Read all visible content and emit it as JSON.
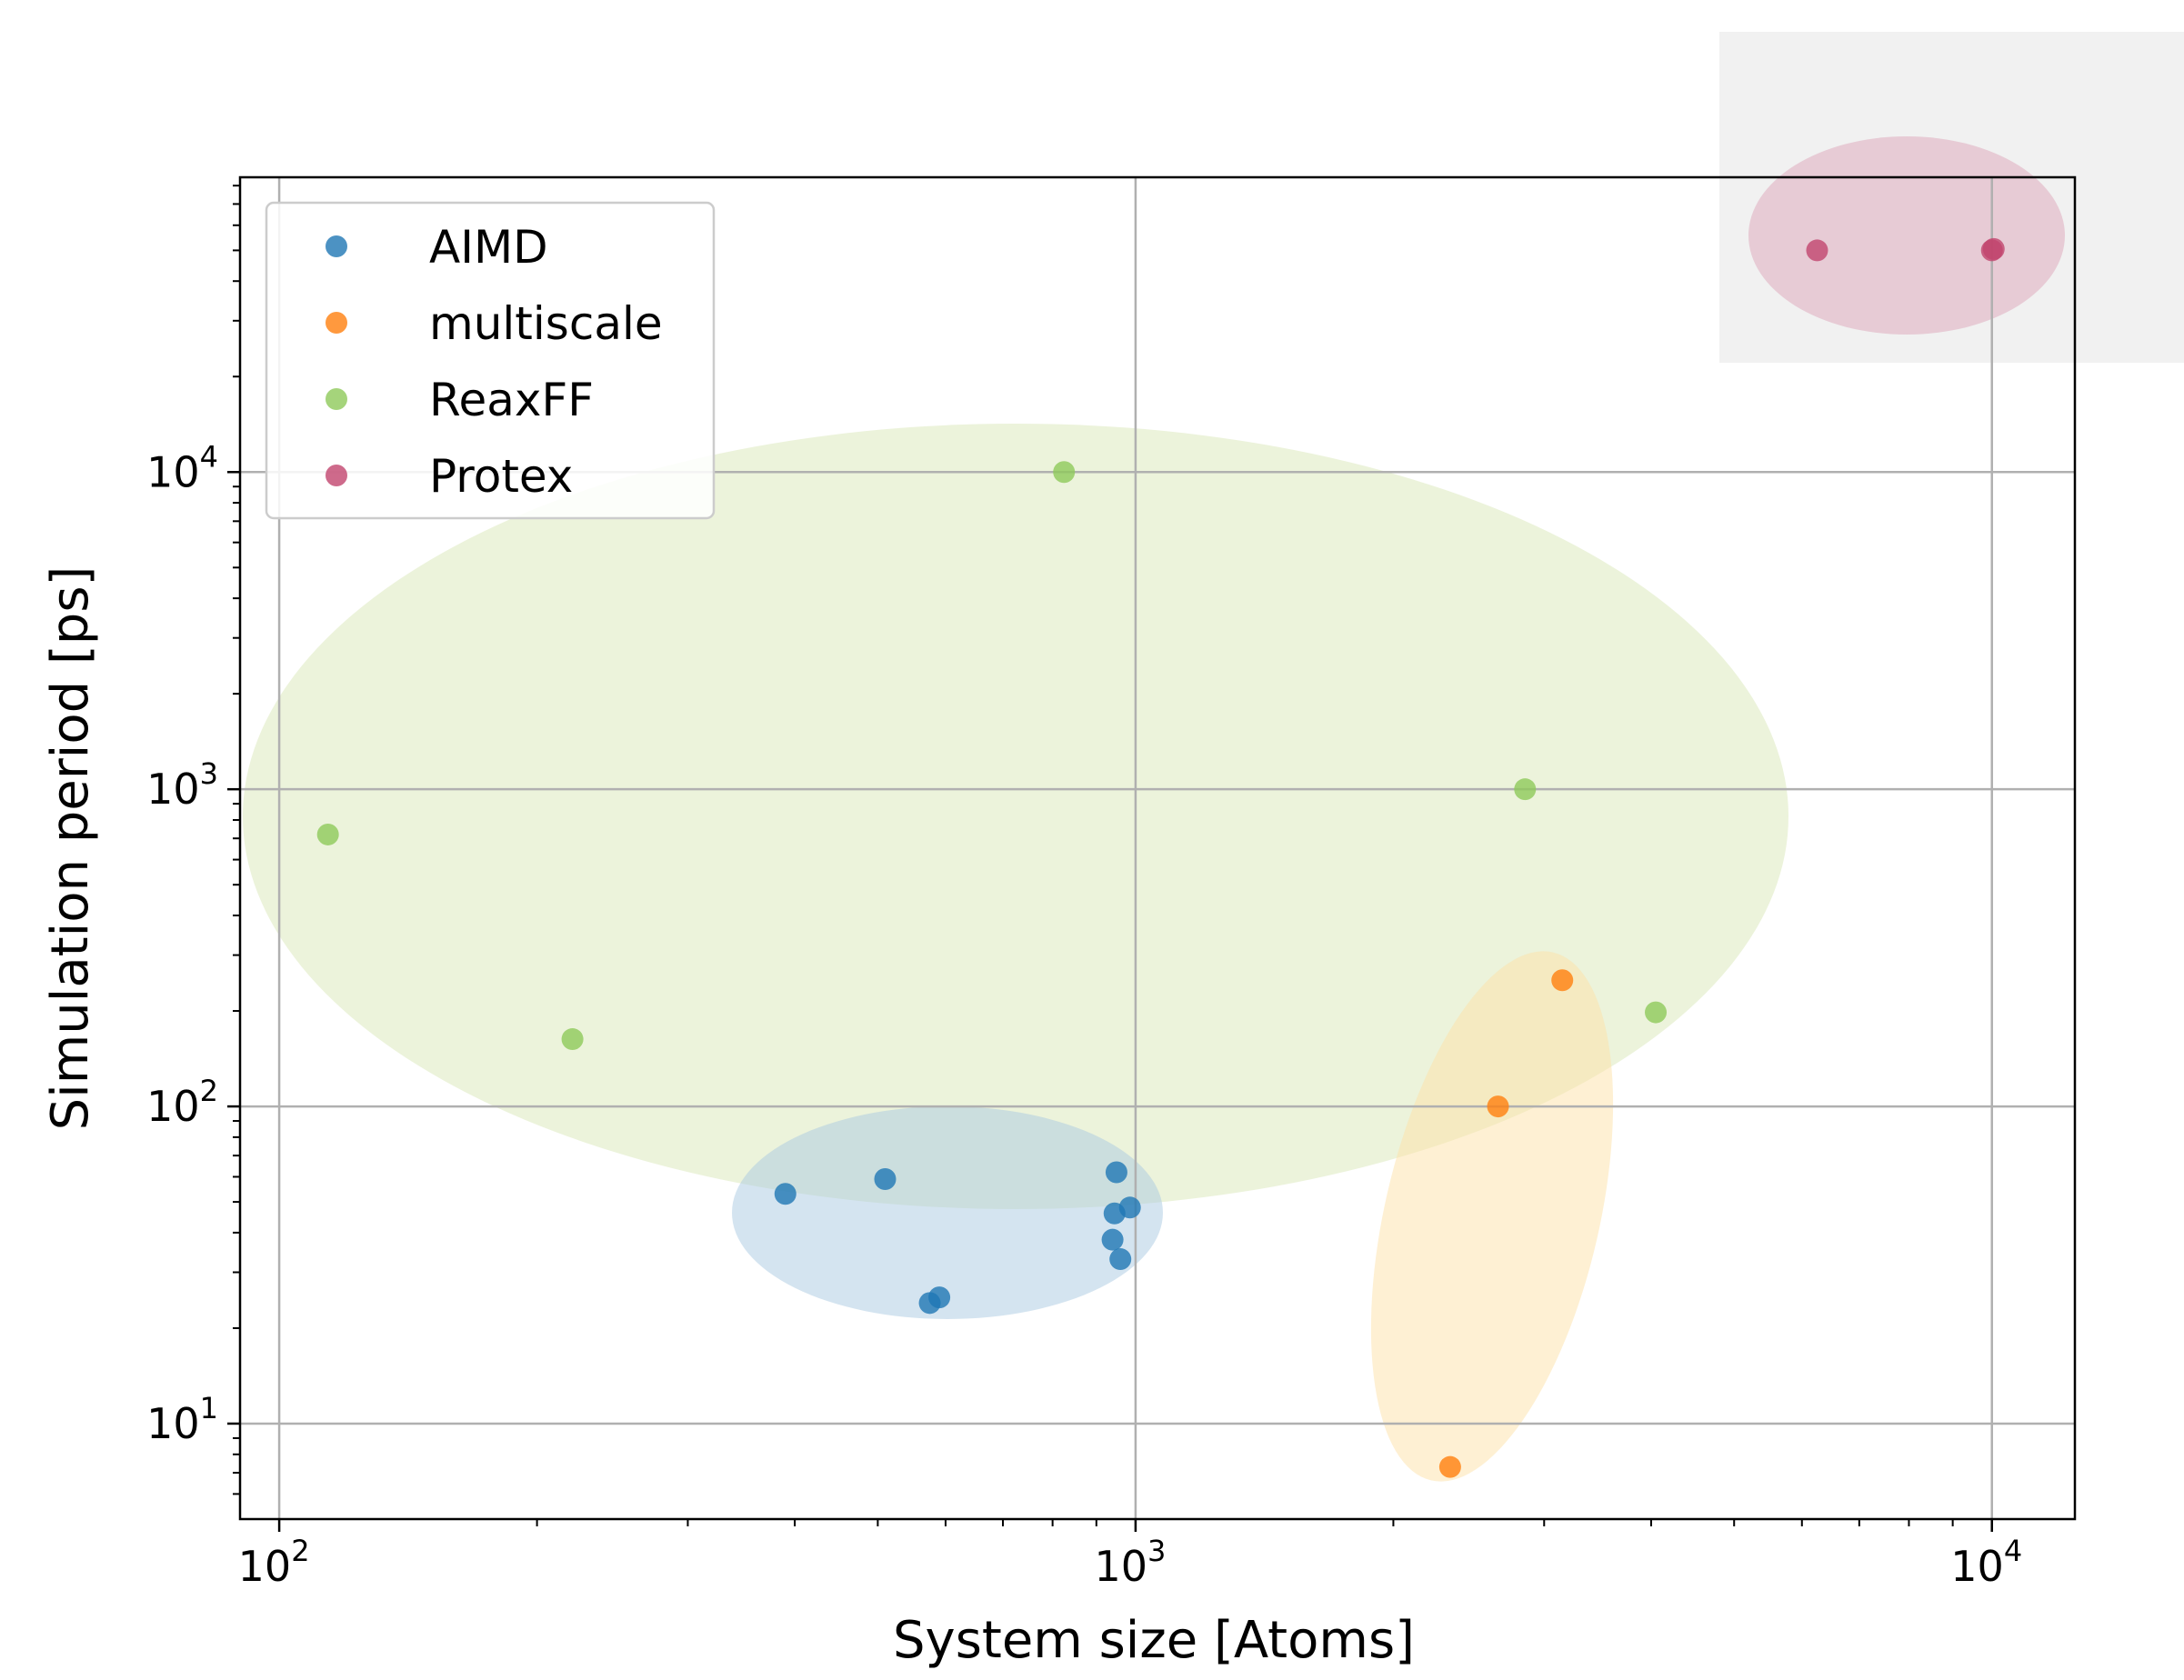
{
  "chart_data": {
    "type": "scatter",
    "title": "",
    "xlabel": "System size [Atoms]",
    "ylabel": "Simulation period [ps]",
    "xscale": "log",
    "yscale": "log",
    "xlim": [
      90,
      12500
    ],
    "ylim": [
      5,
      85000
    ],
    "grid": true,
    "legend_position": "top-left",
    "x_ticks": [
      {
        "value": 100,
        "base": "10",
        "exp": "2"
      },
      {
        "value": 1000,
        "base": "10",
        "exp": "3"
      },
      {
        "value": 10000,
        "base": "10",
        "exp": "4"
      }
    ],
    "y_ticks": [
      {
        "value": 10,
        "base": "10",
        "exp": "1"
      },
      {
        "value": 100,
        "base": "10",
        "exp": "2"
      },
      {
        "value": 1000,
        "base": "10",
        "exp": "3"
      },
      {
        "value": 10000,
        "base": "10",
        "exp": "4"
      }
    ],
    "series": [
      {
        "name": "AIMD",
        "color": "#1f77b4",
        "points": [
          {
            "x": 390,
            "y": 53
          },
          {
            "x": 510,
            "y": 59
          },
          {
            "x": 950,
            "y": 62
          },
          {
            "x": 945,
            "y": 46
          },
          {
            "x": 985,
            "y": 48
          },
          {
            "x": 940,
            "y": 38
          },
          {
            "x": 960,
            "y": 33
          },
          {
            "x": 590,
            "y": 25
          },
          {
            "x": 575,
            "y": 24
          }
        ]
      },
      {
        "name": "multiscale",
        "color": "#ff7f0e",
        "points": [
          {
            "x": 3150,
            "y": 250
          },
          {
            "x": 2650,
            "y": 100
          },
          {
            "x": 2330,
            "y": 7.3
          }
        ]
      },
      {
        "name": "ReaxFF",
        "color": "#8fc95a",
        "points": [
          {
            "x": 114,
            "y": 720
          },
          {
            "x": 220,
            "y": 163
          },
          {
            "x": 825,
            "y": 10000
          },
          {
            "x": 2850,
            "y": 1000
          },
          {
            "x": 4050,
            "y": 198
          }
        ]
      },
      {
        "name": "Protex",
        "color": "#c2456e",
        "points": [
          {
            "x": 6250,
            "y": 50000
          },
          {
            "x": 10000,
            "y": 50000
          },
          {
            "x": 10050,
            "y": 50500
          }
        ]
      }
    ]
  }
}
